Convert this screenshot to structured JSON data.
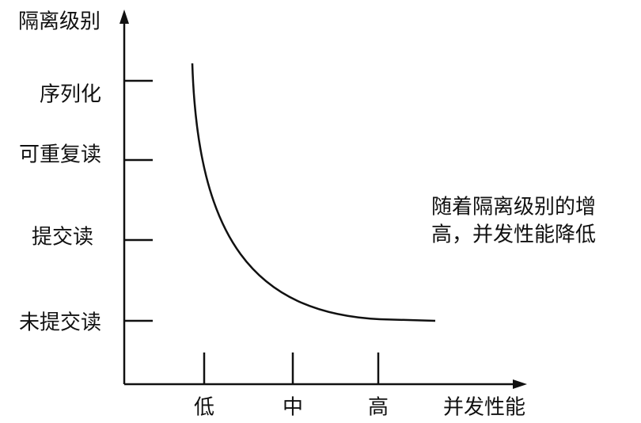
{
  "y_axis": {
    "title": "隔离级别",
    "levels": [
      "序列化",
      "可重复读",
      "提交读",
      "未提交读"
    ]
  },
  "x_axis": {
    "title": "并发性能",
    "levels": [
      "低",
      "中",
      "高"
    ]
  },
  "annotation": [
    "随着隔离级别的增",
    "高，并发性能降低"
  ]
}
